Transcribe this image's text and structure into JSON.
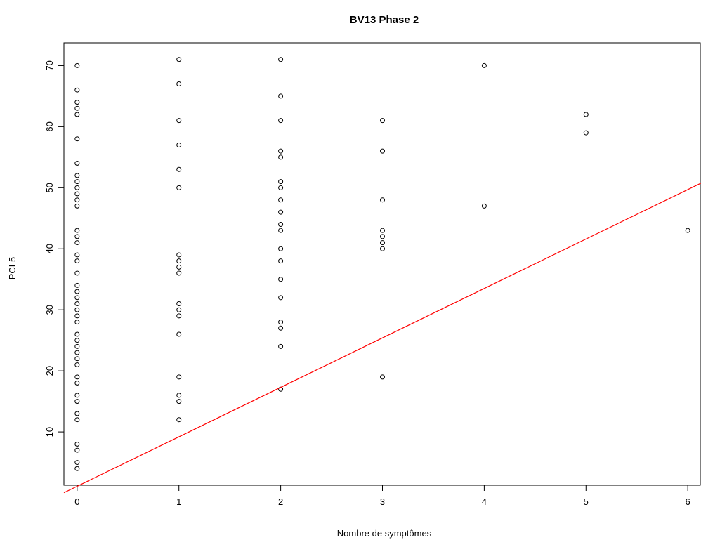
{
  "chart_data": {
    "type": "scatter",
    "title": "BV13 Phase 2",
    "xlabel": "Nombre de symptômes",
    "ylabel": "PCL5",
    "xlim": [
      -0.13,
      6.13
    ],
    "ylim": [
      1.27,
      73.73
    ],
    "x_ticks": [
      0,
      1,
      2,
      3,
      4,
      5,
      6
    ],
    "y_ticks": [
      10,
      20,
      30,
      40,
      50,
      60,
      70
    ],
    "grid": false,
    "legend": "none",
    "colors": {
      "points": "#000000",
      "line": "#ff0000",
      "axes": "#000000"
    },
    "series": [
      {
        "marker": "open-circle",
        "points": [
          [
            0,
            70
          ],
          [
            0,
            66
          ],
          [
            0,
            64
          ],
          [
            0,
            63
          ],
          [
            0,
            62
          ],
          [
            0,
            58
          ],
          [
            0,
            54
          ],
          [
            0,
            52
          ],
          [
            0,
            51
          ],
          [
            0,
            50
          ],
          [
            0,
            49
          ],
          [
            0,
            48
          ],
          [
            0,
            47
          ],
          [
            0,
            43
          ],
          [
            0,
            42
          ],
          [
            0,
            41
          ],
          [
            0,
            39
          ],
          [
            0,
            38
          ],
          [
            0,
            36
          ],
          [
            0,
            34
          ],
          [
            0,
            33
          ],
          [
            0,
            32
          ],
          [
            0,
            31
          ],
          [
            0,
            30
          ],
          [
            0,
            29
          ],
          [
            0,
            28
          ],
          [
            0,
            26
          ],
          [
            0,
            25
          ],
          [
            0,
            24
          ],
          [
            0,
            23
          ],
          [
            0,
            22
          ],
          [
            0,
            21
          ],
          [
            0,
            19
          ],
          [
            0,
            18
          ],
          [
            0,
            16
          ],
          [
            0,
            15
          ],
          [
            0,
            13
          ],
          [
            0,
            12
          ],
          [
            0,
            8
          ],
          [
            0,
            7
          ],
          [
            0,
            5
          ],
          [
            0,
            4
          ],
          [
            1,
            71
          ],
          [
            1,
            67
          ],
          [
            1,
            61
          ],
          [
            1,
            57
          ],
          [
            1,
            53
          ],
          [
            1,
            50
          ],
          [
            1,
            39
          ],
          [
            1,
            38
          ],
          [
            1,
            37
          ],
          [
            1,
            36
          ],
          [
            1,
            31
          ],
          [
            1,
            30
          ],
          [
            1,
            29
          ],
          [
            1,
            26
          ],
          [
            1,
            19
          ],
          [
            1,
            16
          ],
          [
            1,
            15
          ],
          [
            1,
            12
          ],
          [
            2,
            71
          ],
          [
            2,
            65
          ],
          [
            2,
            61
          ],
          [
            2,
            56
          ],
          [
            2,
            55
          ],
          [
            2,
            51
          ],
          [
            2,
            50
          ],
          [
            2,
            48
          ],
          [
            2,
            46
          ],
          [
            2,
            44
          ],
          [
            2,
            43
          ],
          [
            2,
            40
          ],
          [
            2,
            38
          ],
          [
            2,
            35
          ],
          [
            2,
            32
          ],
          [
            2,
            28
          ],
          [
            2,
            27
          ],
          [
            2,
            24
          ],
          [
            2,
            17
          ],
          [
            3,
            61
          ],
          [
            3,
            56
          ],
          [
            3,
            48
          ],
          [
            3,
            43
          ],
          [
            3,
            42
          ],
          [
            3,
            41
          ],
          [
            3,
            40
          ],
          [
            3,
            19
          ],
          [
            4,
            70
          ],
          [
            4,
            47
          ],
          [
            5,
            62
          ],
          [
            5,
            59
          ],
          [
            6,
            43
          ]
        ]
      }
    ],
    "reference_line": {
      "intercept": 1.1,
      "slope": 8.1,
      "color": "#ff0000"
    }
  }
}
